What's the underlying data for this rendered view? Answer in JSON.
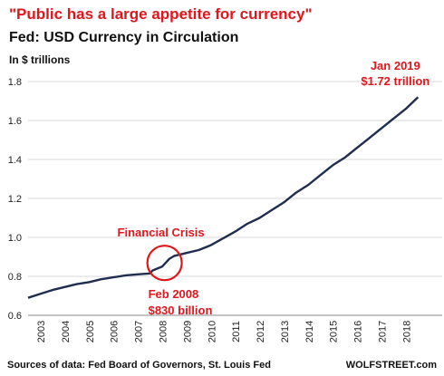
{
  "chart_data": {
    "type": "line",
    "title": "\"Public has a large appetite for currency\"",
    "subtitle": "Fed: USD Currency in Circulation",
    "units_label": "In $ trillions",
    "xlabel": "",
    "ylabel": "",
    "xlim": [
      2003.0,
      2019.1
    ],
    "ylim": [
      0.6,
      1.8
    ],
    "y_ticks": [
      0.6,
      0.8,
      1.0,
      1.2,
      1.4,
      1.6,
      1.8
    ],
    "y_tick_labels": [
      "0.6",
      "0.8",
      "1.0",
      "1.2",
      "1.4",
      "1.6",
      "1.8"
    ],
    "x_ticks": [
      2003,
      2004,
      2005,
      2006,
      2007,
      2008,
      2009,
      2010,
      2011,
      2012,
      2013,
      2014,
      2015,
      2016,
      2017,
      2018
    ],
    "x_tick_labels": [
      "2003",
      "2004",
      "2005",
      "2006",
      "2007",
      "2008",
      "2009",
      "2010",
      "2011",
      "2012",
      "2013",
      "2014",
      "2015",
      "2016",
      "2017",
      "2018"
    ],
    "grid": "horizontal",
    "line_color": "#1f2d4f",
    "accent_color": "#e0161c",
    "series": [
      {
        "name": "",
        "x": [
          2003.0,
          2003.5,
          2004.0,
          2004.5,
          2005.0,
          2005.5,
          2006.0,
          2006.5,
          2007.0,
          2007.5,
          2008.0,
          2008.1,
          2008.5,
          2008.8,
          2009.0,
          2009.5,
          2010.0,
          2010.5,
          2011.0,
          2011.5,
          2012.0,
          2012.5,
          2013.0,
          2013.5,
          2014.0,
          2014.5,
          2015.0,
          2015.5,
          2016.0,
          2016.5,
          2017.0,
          2017.5,
          2018.0,
          2018.5,
          2019.0
        ],
        "values": [
          0.69,
          0.71,
          0.73,
          0.745,
          0.76,
          0.77,
          0.785,
          0.795,
          0.805,
          0.81,
          0.815,
          0.83,
          0.85,
          0.89,
          0.905,
          0.92,
          0.935,
          0.96,
          0.995,
          1.03,
          1.07,
          1.1,
          1.14,
          1.18,
          1.23,
          1.27,
          1.32,
          1.37,
          1.41,
          1.46,
          1.51,
          1.56,
          1.61,
          1.66,
          1.72
        ]
      }
    ],
    "annotations": {
      "end_date": "Jan 2019",
      "end_value": "$1.72 trillion",
      "crisis_label": "Financial Crisis",
      "crisis_center": [
        2008.6,
        0.869
      ],
      "feb_date": "Feb 2008",
      "feb_value": "$830 billion"
    }
  },
  "footer": {
    "source": "Sources of data: Fed Board of Governors, St. Louis Fed",
    "brand": "WOLFSTREET.com"
  }
}
